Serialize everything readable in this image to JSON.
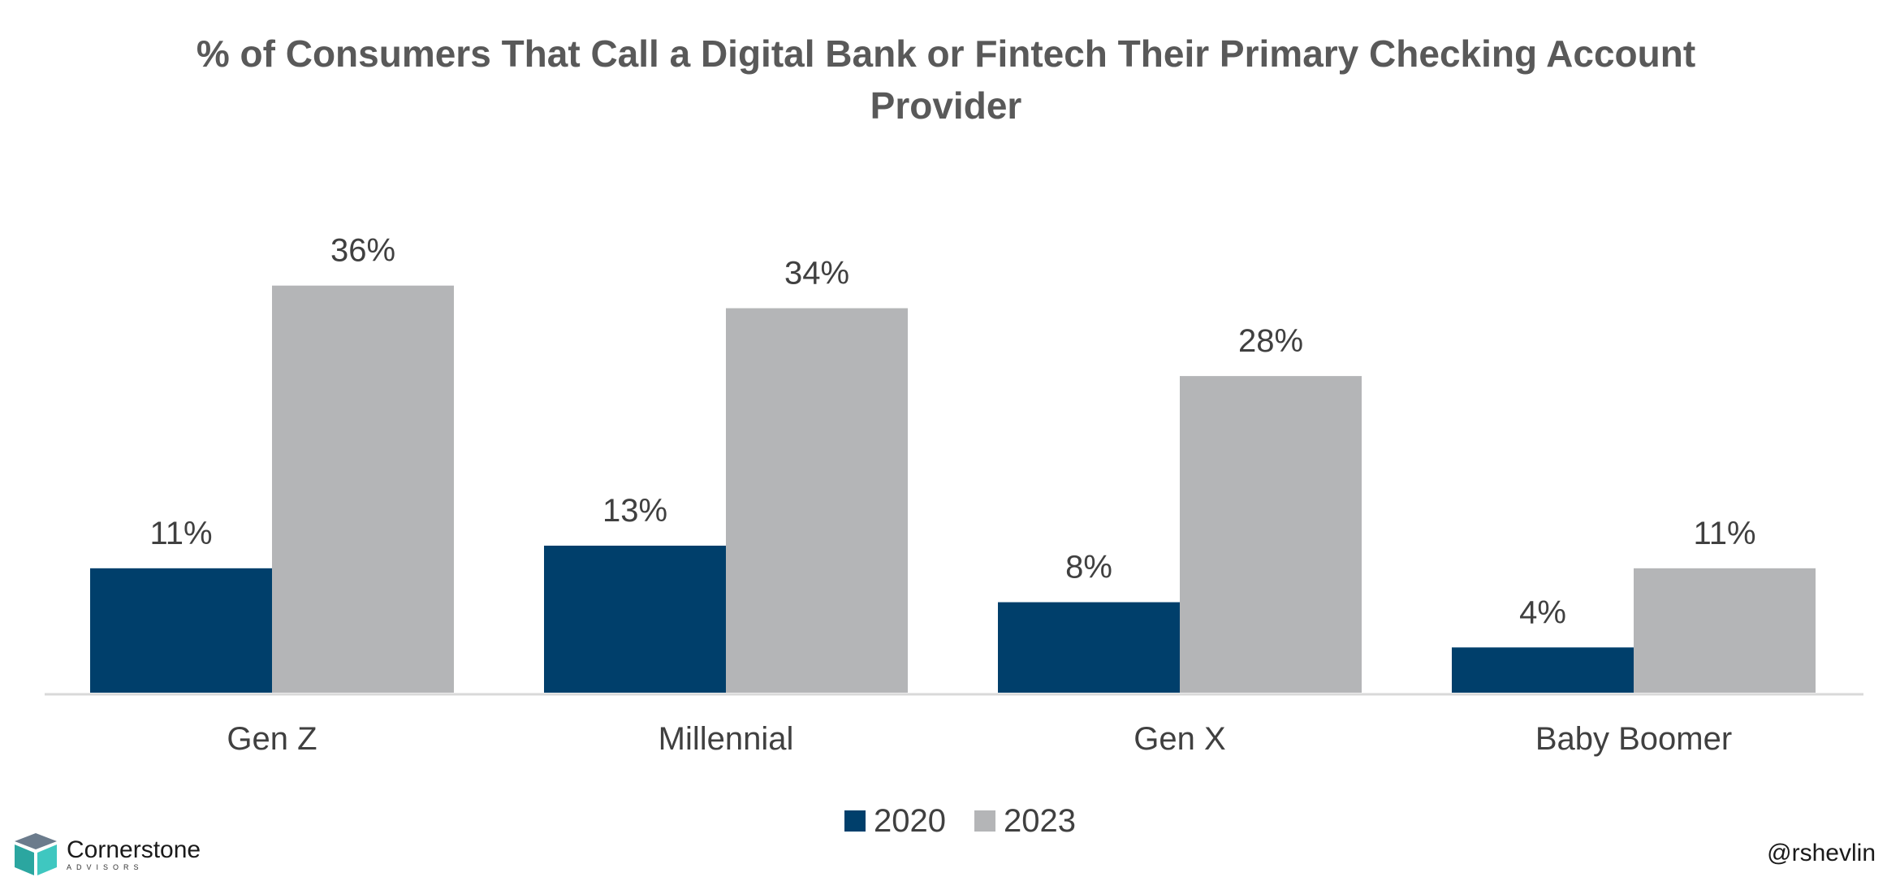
{
  "chart_data": {
    "type": "bar",
    "title": "% of Consumers That Call a Digital Bank or Fintech Their Primary Checking Account Provider",
    "categories": [
      "Gen Z",
      "Millennial",
      "Gen X",
      "Baby Boomer"
    ],
    "series": [
      {
        "name": "2020",
        "values": [
          11,
          13,
          8,
          4
        ],
        "labels": [
          "11%",
          "13%",
          "8%",
          "4%"
        ],
        "color": "#003f6b"
      },
      {
        "name": "2023",
        "values": [
          36,
          34,
          28,
          11
        ],
        "labels": [
          "36%",
          "34%",
          "28%",
          "11%"
        ],
        "color": "#b4b5b7"
      }
    ],
    "ylim": [
      0,
      40
    ],
    "grid": false,
    "legend": "bottom-center",
    "axis_line_color": "#d9d9d9"
  },
  "branding": {
    "logo_name": "Cornerstone",
    "logo_tagline": "ADVISORS",
    "logo_colors": [
      "#2ba6a0",
      "#3fc7c0",
      "#6b7b8c"
    ],
    "handle": "@rshevlin"
  }
}
